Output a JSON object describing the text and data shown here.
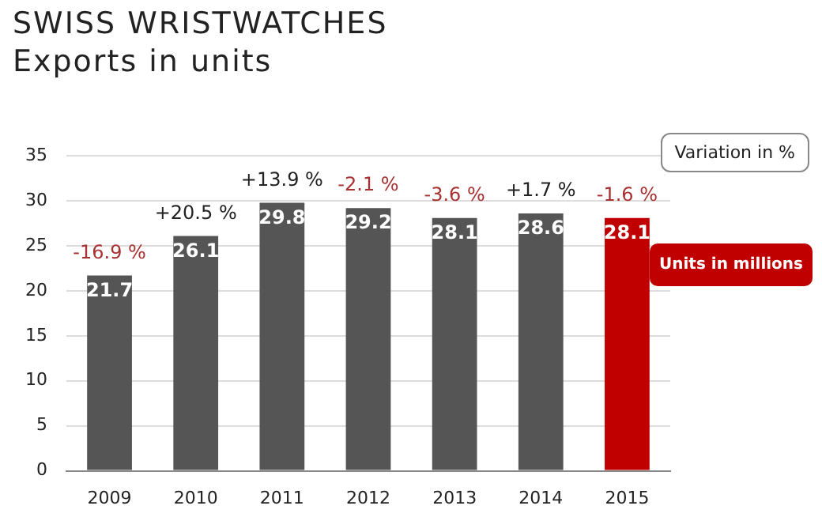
{
  "chart_data": {
    "type": "bar",
    "title": "SWISS WRISTWATCHES",
    "subtitle": "Exports in units",
    "categories": [
      "2009",
      "2010",
      "2011",
      "2012",
      "2013",
      "2014",
      "2015"
    ],
    "values": [
      21.7,
      26.1,
      29.8,
      29.2,
      28.1,
      28.6,
      28.1
    ],
    "colors": [
      "#555555",
      "#555555",
      "#555555",
      "#555555",
      "#555555",
      "#555555",
      "#c00000"
    ],
    "ylim": [
      0,
      35
    ],
    "yticks": [
      0,
      5,
      10,
      15,
      20,
      25,
      30,
      35
    ],
    "grid": "y",
    "legend": false,
    "data_labels": true,
    "annotations": [
      "-16.9 %",
      "+20.5 %",
      "+13.9 %",
      "-2.1 %",
      "-3.6 %",
      "+1.7 %",
      "-1.6 %",
      "Variation in %",
      "Units in millions"
    ]
  }
}
